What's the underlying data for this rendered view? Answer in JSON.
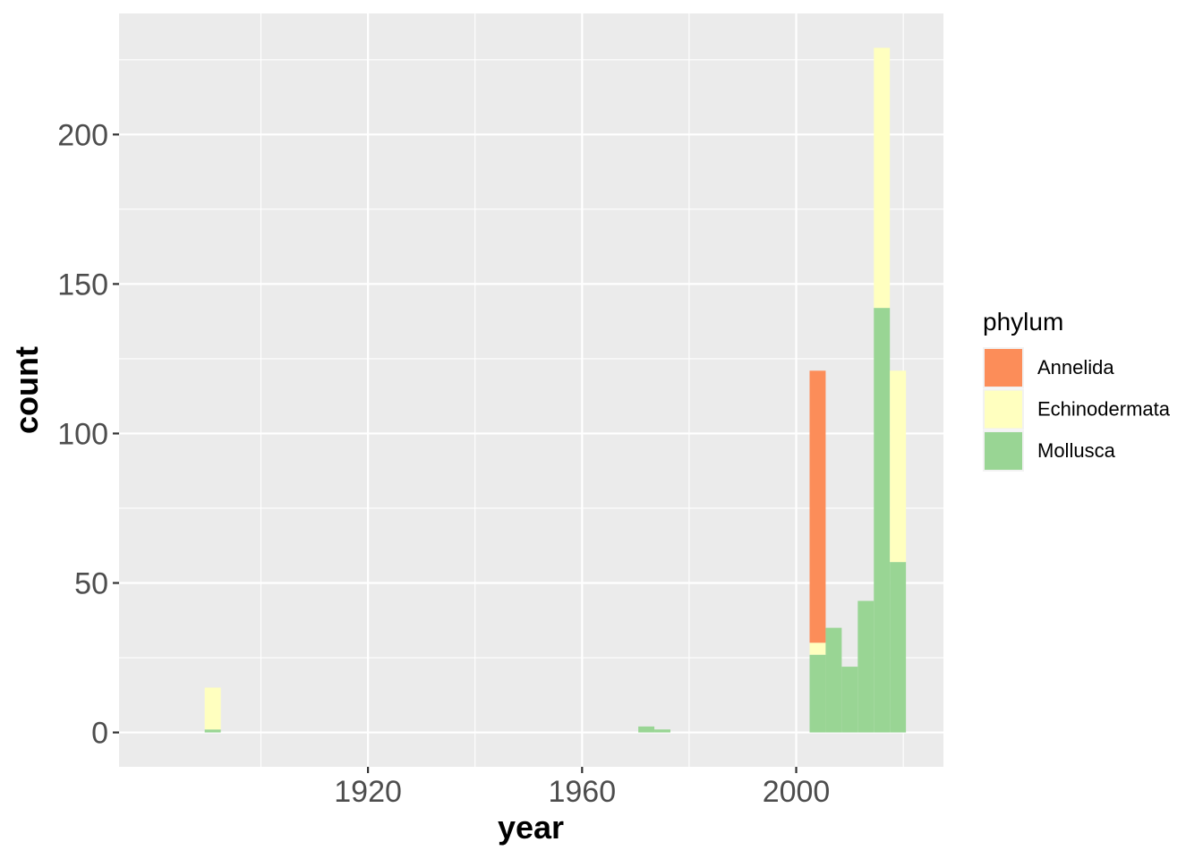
{
  "chart_data": {
    "type": "bar",
    "subtype": "stacked-histogram",
    "xlabel": "year",
    "ylabel": "count",
    "xlim": [
      1873.5,
      2027.5
    ],
    "ylim": [
      -11.5,
      240.5
    ],
    "x_ticks": [
      1920,
      1960,
      2000
    ],
    "x_tick_labels": [
      "1920",
      "1960",
      "2000"
    ],
    "y_ticks": [
      0,
      50,
      100,
      150,
      200
    ],
    "y_tick_labels": [
      "0",
      "50",
      "100",
      "150",
      "200"
    ],
    "bin_width": 3,
    "bins": [
      1891,
      1972,
      1975,
      2004,
      2007,
      2010,
      2013,
      2016,
      2019
    ],
    "series": [
      {
        "name": "Annelida",
        "color": "#fc8d59",
        "values": [
          0,
          0,
          0,
          91,
          0,
          0,
          0,
          0,
          0
        ]
      },
      {
        "name": "Echinodermata",
        "color": "#ffffbf",
        "values": [
          14,
          0,
          0,
          4,
          0,
          0,
          0,
          87,
          64
        ]
      },
      {
        "name": "Mollusca",
        "color": "#99d594",
        "values": [
          1,
          2,
          1,
          26,
          35,
          22,
          44,
          142,
          57
        ]
      }
    ],
    "stack_order_bottom_to_top": [
      "Mollusca",
      "Echinodermata",
      "Annelida"
    ],
    "grid": true,
    "legend": {
      "title": "phylum",
      "placement": "right"
    }
  }
}
